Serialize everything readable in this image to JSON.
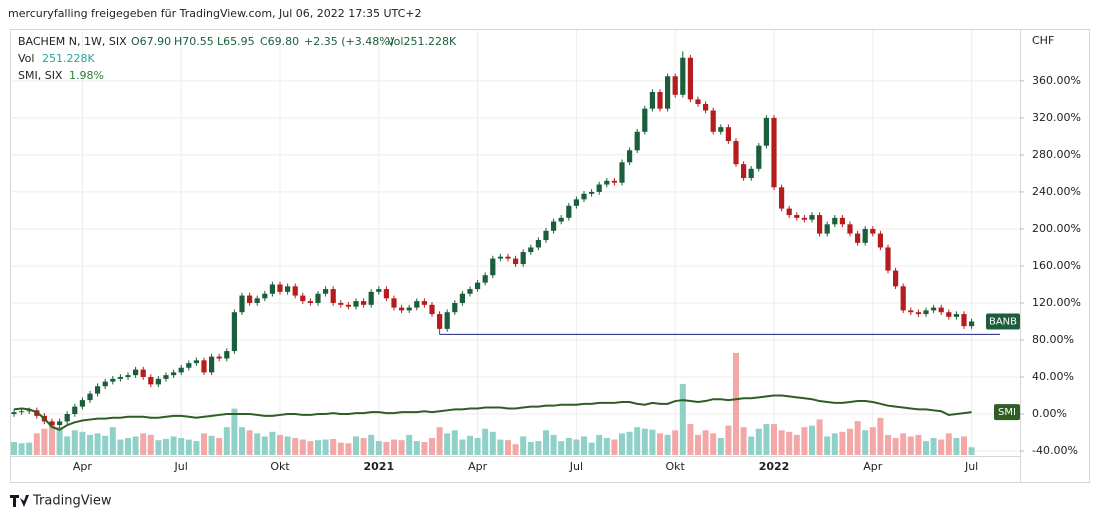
{
  "header": {
    "title": "mercuryfalling freigegeben für TradingView.com, Jul 06, 2022 17:35 UTC+2",
    "footer": "TradingView"
  },
  "chart_data": {
    "type": "candlestick",
    "symbol": "BACHEM N, 1W, SIX",
    "ohlc_labels": [
      "O67.90",
      "H70.55",
      "L65.95",
      "C69.80"
    ],
    "change": "+2.35 (+3.48%)",
    "volume_label": "Vol251.228K",
    "vol_legend": {
      "name": "Vol",
      "value": "251.228K"
    },
    "smi_legend": {
      "name": "SMI, SIX",
      "value": "1.98%"
    },
    "currency": "CHF",
    "price_badge": "BANB",
    "smi_badge": "SMI",
    "up_color": "#1b5e3b",
    "down_color": "#b71c1c",
    "vol_up_color": "#8fd0c8",
    "vol_down_color": "#f4a7a7",
    "smi_color": "#2e5e24",
    "hline_color": "#1a237e",
    "hline": 86,
    "ylim": [
      -44.3,
      415
    ],
    "yticks": [
      {
        "value": -40,
        "label": "-40.00%"
      },
      {
        "value": 0,
        "label": "0.00%"
      },
      {
        "value": 40,
        "label": "40.00%"
      },
      {
        "value": 80,
        "label": "80.00%"
      },
      {
        "value": 120,
        "label": "120.00%"
      },
      {
        "value": 160,
        "label": "160.00%"
      },
      {
        "value": 200,
        "label": "200.00%"
      },
      {
        "value": 240,
        "label": "240.00%"
      },
      {
        "value": 280,
        "label": "280.00%"
      },
      {
        "value": 320,
        "label": "320.00%"
      },
      {
        "value": 360,
        "label": "360.00%"
      }
    ],
    "grid": true,
    "categories": [
      null,
      null,
      null,
      null,
      null,
      null,
      null,
      null,
      null,
      "Apr",
      null,
      null,
      null,
      null,
      null,
      null,
      null,
      null,
      null,
      null,
      null,
      null,
      "Jul",
      null,
      null,
      null,
      null,
      null,
      null,
      null,
      null,
      null,
      null,
      null,
      null,
      "Okt",
      null,
      null,
      null,
      null,
      null,
      null,
      null,
      null,
      null,
      null,
      null,
      null,
      "2021",
      null,
      null,
      null,
      null,
      null,
      null,
      null,
      null,
      null,
      null,
      null,
      null,
      "Apr",
      null,
      null,
      null,
      null,
      null,
      null,
      null,
      null,
      null,
      null,
      null,
      null,
      "Jul",
      null,
      null,
      null,
      null,
      null,
      null,
      null,
      null,
      null,
      null,
      null,
      null,
      "Okt",
      null,
      null,
      null,
      null,
      null,
      null,
      null,
      null,
      null,
      null,
      null,
      null,
      "2022",
      null,
      null,
      null,
      null,
      null,
      null,
      null,
      null,
      null,
      null,
      null,
      null,
      "Apr",
      null,
      null,
      null,
      null,
      null,
      null,
      null,
      null,
      null,
      null,
      null,
      null,
      "Jul"
    ],
    "open": [
      0,
      2,
      3,
      4,
      -2,
      -8,
      -12,
      -8,
      0,
      8,
      15,
      22,
      30,
      35,
      38,
      40,
      42,
      48,
      40,
      32,
      38,
      42,
      45,
      50,
      55,
      58,
      45,
      62,
      60,
      68,
      110,
      128,
      120,
      125,
      130,
      140,
      132,
      138,
      128,
      122,
      120,
      130,
      135,
      120,
      118,
      116,
      122,
      118,
      132,
      135,
      125,
      115,
      112,
      115,
      122,
      118,
      108,
      92,
      110,
      120,
      130,
      135,
      142,
      150,
      168,
      170,
      168,
      162,
      175,
      180,
      188,
      198,
      208,
      212,
      225,
      232,
      238,
      240,
      248,
      252,
      250,
      272,
      285,
      305,
      330,
      348,
      330,
      365,
      345,
      385,
      340,
      335,
      328,
      305,
      310,
      295,
      270,
      255,
      265,
      290,
      320,
      245,
      222,
      215,
      212,
      210,
      215,
      195,
      205,
      212,
      205,
      195,
      185,
      200,
      195,
      180,
      155,
      138,
      112,
      110,
      108,
      112,
      115,
      110,
      105,
      108,
      95
    ],
    "high": [
      5,
      6,
      7,
      7,
      1,
      -5,
      -5,
      3,
      11,
      18,
      25,
      33,
      38,
      41,
      43,
      45,
      51,
      51,
      43,
      41,
      45,
      48,
      53,
      58,
      61,
      61,
      65,
      65,
      71,
      113,
      131,
      131,
      128,
      133,
      143,
      143,
      141,
      141,
      131,
      125,
      133,
      138,
      138,
      123,
      121,
      125,
      125,
      135,
      138,
      138,
      128,
      118,
      118,
      125,
      125,
      121,
      111,
      113,
      123,
      133,
      138,
      145,
      153,
      171,
      173,
      173,
      171,
      178,
      183,
      191,
      201,
      211,
      215,
      228,
      235,
      241,
      243,
      251,
      255,
      255,
      275,
      288,
      308,
      333,
      351,
      351,
      368,
      368,
      392,
      388,
      343,
      338,
      331,
      313,
      313,
      298,
      273,
      268,
      293,
      323,
      323,
      248,
      225,
      218,
      215,
      218,
      218,
      208,
      215,
      215,
      208,
      198,
      203,
      203,
      198,
      183,
      158,
      141,
      115,
      113,
      115,
      118,
      118,
      113,
      111,
      111,
      103
    ],
    "low": [
      -3,
      -1,
      0,
      -5,
      -11,
      -15,
      -15,
      -11,
      -3,
      5,
      12,
      19,
      27,
      32,
      35,
      37,
      39,
      37,
      29,
      29,
      35,
      39,
      42,
      47,
      52,
      42,
      42,
      57,
      57,
      65,
      107,
      117,
      117,
      122,
      127,
      129,
      129,
      125,
      119,
      117,
      117,
      127,
      117,
      115,
      113,
      113,
      115,
      115,
      129,
      122,
      112,
      109,
      109,
      112,
      115,
      105,
      86,
      89,
      107,
      117,
      127,
      132,
      139,
      147,
      165,
      165,
      159,
      159,
      172,
      177,
      185,
      195,
      205,
      209,
      222,
      229,
      235,
      237,
      245,
      247,
      247,
      269,
      282,
      302,
      327,
      327,
      327,
      342,
      342,
      337,
      332,
      325,
      302,
      302,
      292,
      267,
      252,
      252,
      262,
      287,
      242,
      219,
      212,
      209,
      207,
      207,
      192,
      192,
      202,
      202,
      192,
      182,
      182,
      192,
      177,
      152,
      135,
      109,
      107,
      105,
      105,
      109,
      107,
      102,
      102,
      92,
      92
    ],
    "close": [
      2,
      3,
      4,
      -2,
      -8,
      -12,
      -8,
      0,
      8,
      15,
      22,
      30,
      35,
      38,
      40,
      42,
      48,
      40,
      32,
      38,
      42,
      45,
      50,
      55,
      58,
      45,
      62,
      60,
      68,
      110,
      128,
      120,
      125,
      130,
      140,
      132,
      138,
      128,
      122,
      120,
      130,
      135,
      120,
      118,
      116,
      122,
      118,
      132,
      135,
      125,
      115,
      112,
      115,
      122,
      118,
      108,
      92,
      110,
      120,
      130,
      135,
      142,
      150,
      168,
      170,
      168,
      162,
      175,
      180,
      188,
      198,
      208,
      212,
      225,
      232,
      238,
      240,
      248,
      252,
      250,
      272,
      285,
      305,
      330,
      348,
      330,
      365,
      345,
      385,
      340,
      335,
      328,
      305,
      310,
      295,
      270,
      255,
      265,
      290,
      320,
      245,
      222,
      215,
      212,
      210,
      215,
      195,
      205,
      212,
      205,
      195,
      185,
      200,
      195,
      180,
      155,
      138,
      112,
      110,
      108,
      112,
      115,
      110,
      105,
      108,
      95,
      100
    ],
    "volume": [
      420,
      380,
      400,
      700,
      850,
      1050,
      900,
      600,
      800,
      750,
      650,
      700,
      620,
      900,
      500,
      550,
      600,
      700,
      650,
      480,
      520,
      600,
      550,
      500,
      450,
      700,
      620,
      550,
      900,
      1500,
      900,
      800,
      700,
      600,
      750,
      650,
      600,
      550,
      500,
      450,
      480,
      500,
      520,
      400,
      380,
      600,
      550,
      650,
      450,
      420,
      500,
      480,
      650,
      450,
      420,
      550,
      900,
      700,
      800,
      500,
      620,
      550,
      850,
      750,
      500,
      480,
      350,
      600,
      420,
      450,
      800,
      650,
      450,
      550,
      500,
      600,
      400,
      650,
      550,
      500,
      700,
      750,
      900,
      850,
      820,
      700,
      650,
      800,
      2300,
      1000,
      650,
      800,
      700,
      550,
      950,
      3300,
      900,
      600,
      850,
      1000,
      1000,
      800,
      750,
      650,
      900,
      950,
      1150,
      600,
      700,
      750,
      850,
      1100,
      800,
      900,
      1200,
      650,
      550,
      700,
      600,
      650,
      450,
      550,
      500,
      700,
      550,
      600,
      251.228
    ],
    "smi": [
      5,
      6,
      5,
      2,
      -5,
      -14,
      -17,
      -12,
      -9,
      -7,
      -6,
      -5,
      -5,
      -4,
      -4,
      -3,
      -3,
      -3,
      -4,
      -4,
      -3,
      -2,
      -2,
      -3,
      -4,
      -3,
      -2,
      -1,
      0,
      0,
      0,
      0,
      -1,
      -2,
      -2,
      -1,
      0,
      0,
      -1,
      -1,
      0,
      0,
      1,
      0,
      0,
      1,
      1,
      2,
      2,
      1,
      1,
      2,
      2,
      2,
      3,
      2,
      3,
      4,
      5,
      5,
      6,
      6,
      7,
      7,
      7,
      6,
      6,
      7,
      8,
      8,
      9,
      9,
      10,
      10,
      10,
      11,
      11,
      12,
      12,
      12,
      13,
      13,
      11,
      10,
      12,
      11,
      11,
      14,
      15,
      14,
      13,
      14,
      16,
      16,
      15,
      16,
      17,
      17,
      18,
      19,
      20,
      20,
      19,
      18,
      17,
      16,
      14,
      13,
      12,
      12,
      13,
      14,
      14,
      13,
      11,
      9,
      8,
      7,
      6,
      5,
      5,
      4,
      3,
      -1,
      0,
      1,
      1.98
    ]
  }
}
